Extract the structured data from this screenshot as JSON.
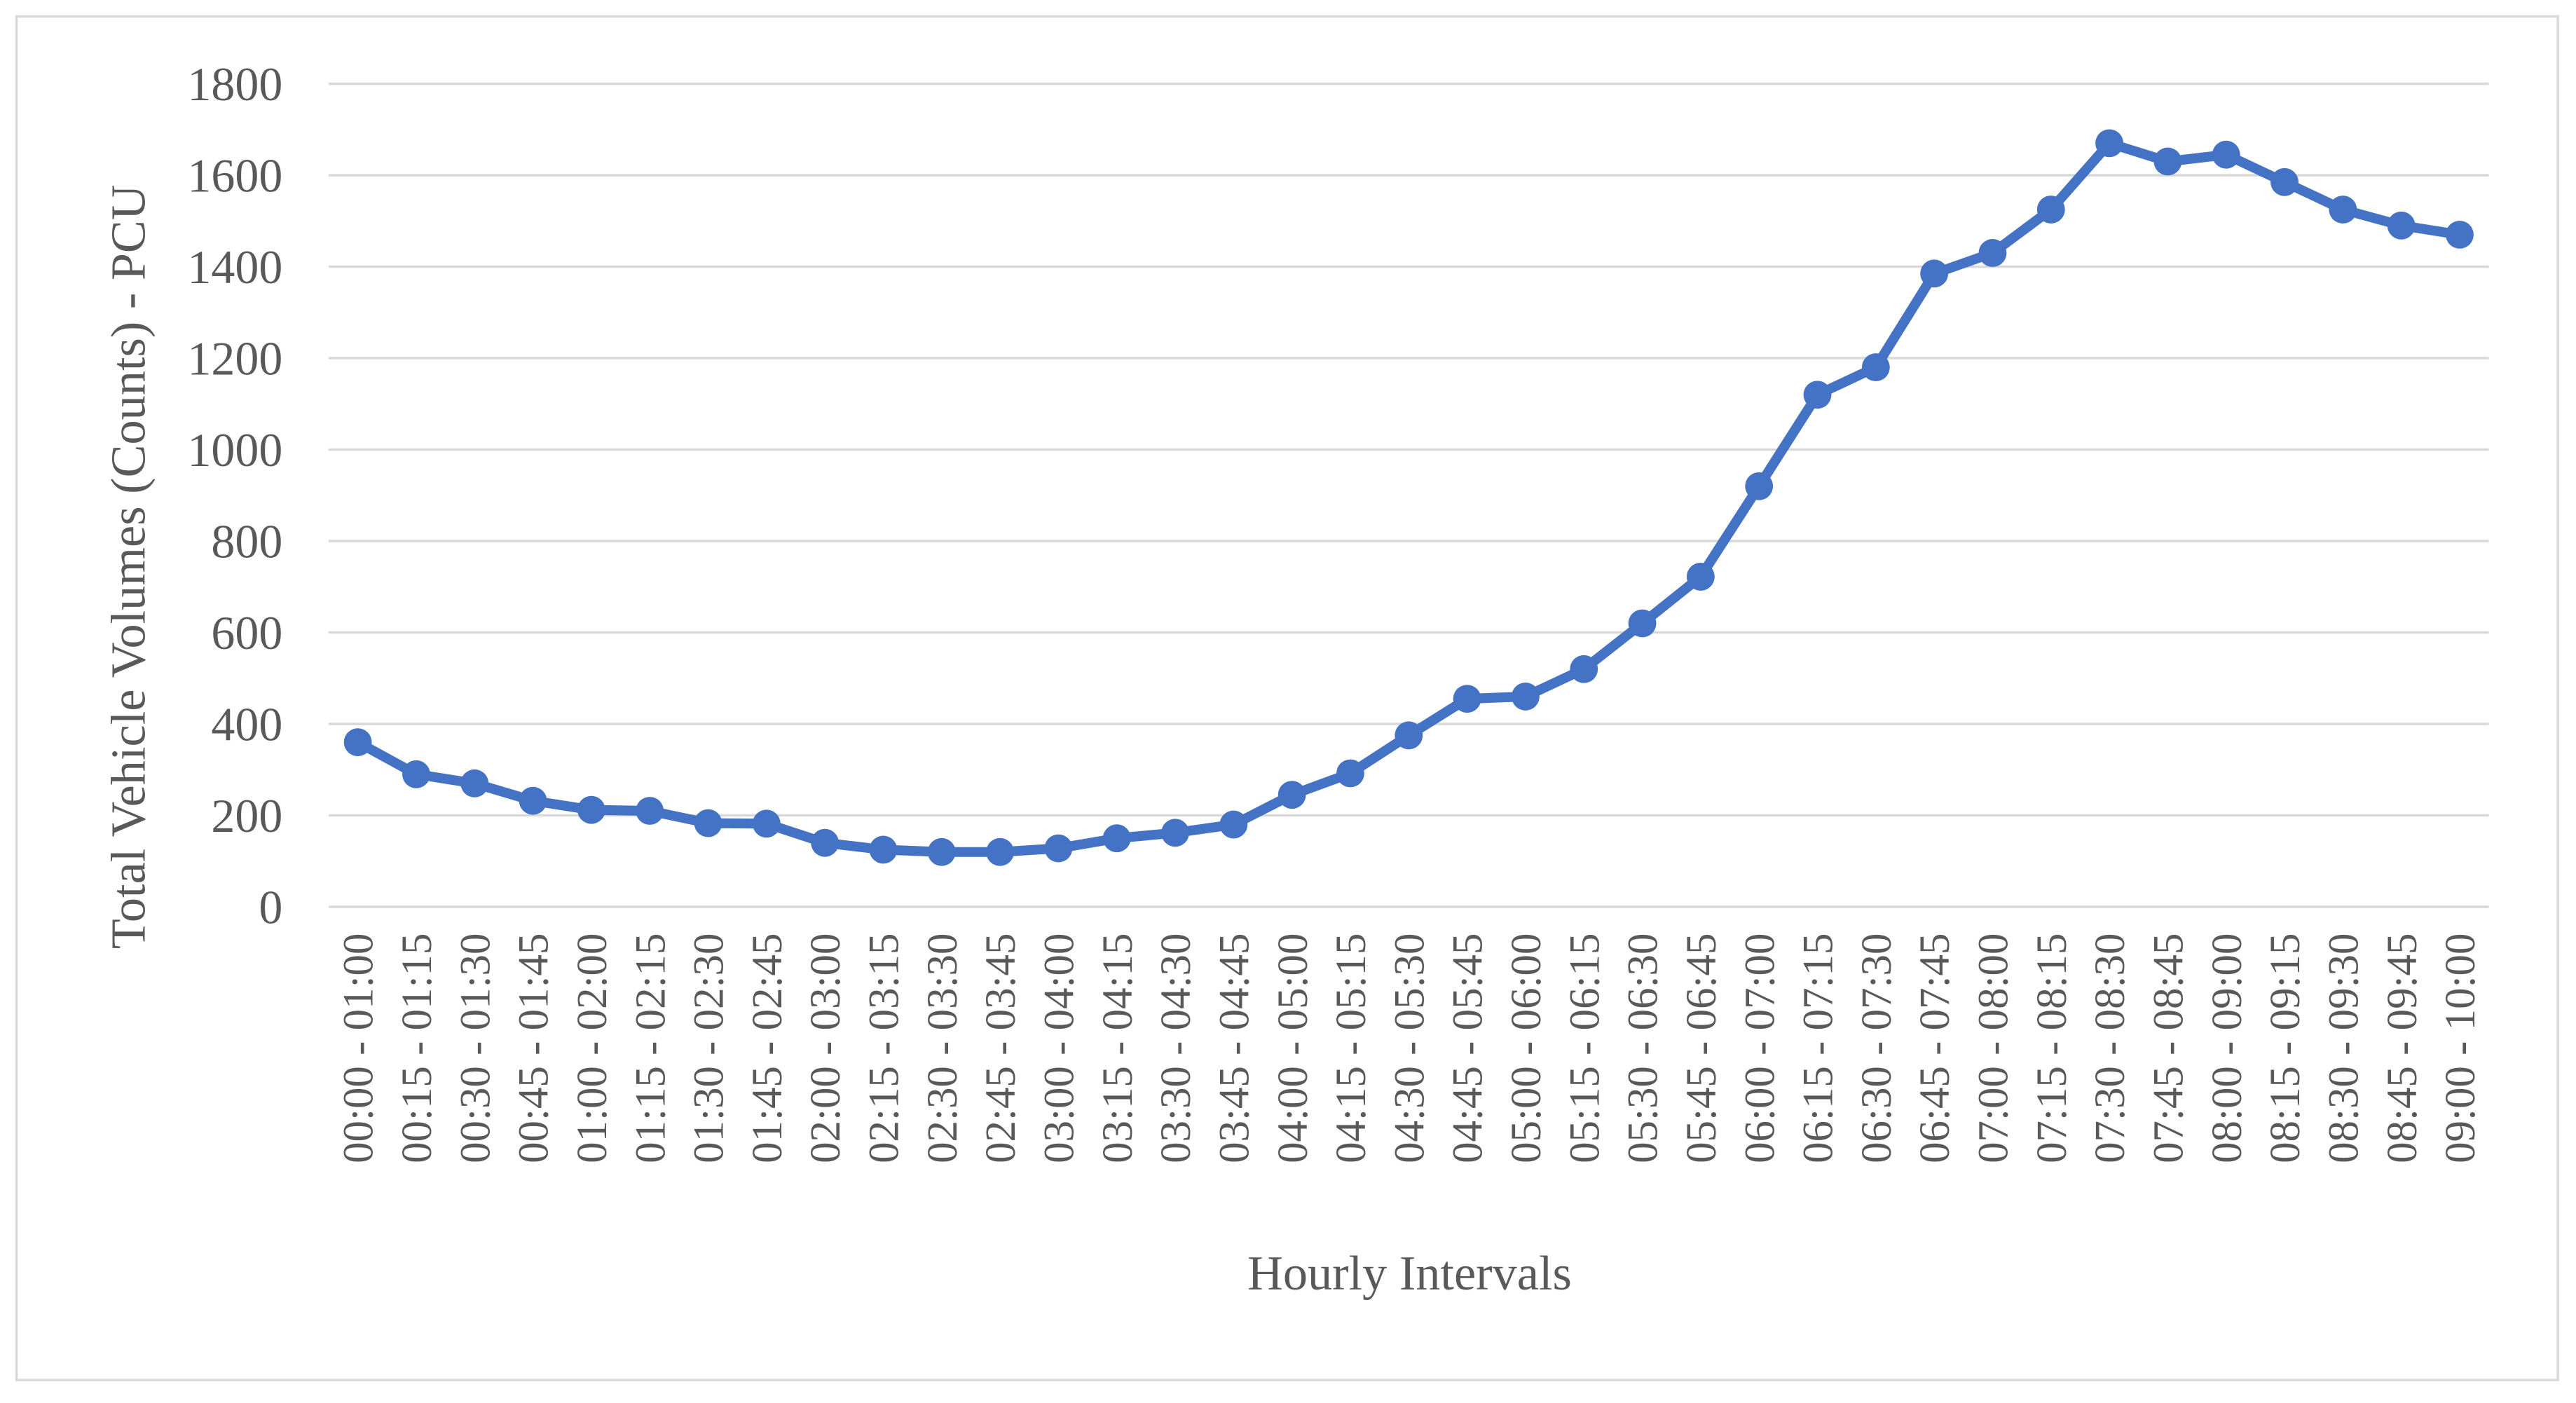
{
  "chart_data": {
    "type": "line",
    "x_label": "Hourly Intervals",
    "y_label": "Total Vehicle Volumes (Counts) - PCU",
    "categories": [
      "00:00 - 01:00",
      "00:15 - 01:15",
      "00:30 - 01:30",
      "00:45 - 01:45",
      "01:00 - 02:00",
      "01:15 - 02:15",
      "01:30 - 02:30",
      "01:45 - 02:45",
      "02:00 - 03:00",
      "02:15 - 03:15",
      "02:30 - 03:30",
      "02:45 - 03:45",
      "03:00 - 04:00",
      "03:15 - 04:15",
      "03:30 - 04:30",
      "03:45 - 04:45",
      "04:00 - 05:00",
      "04:15 - 05:15",
      "04:30 - 05:30",
      "04:45 - 05:45",
      "05:00 - 06:00",
      "05:15 - 06:15",
      "05:30 - 06:30",
      "05:45 - 06:45",
      "06:00 - 07:00",
      "06:15 - 07:15",
      "06:30 - 07:30",
      "06:45 - 07:45",
      "07:00 - 08:00",
      "07:15 - 08:15",
      "07:30 - 08:30",
      "07:45 - 08:45",
      "08:00 - 09:00",
      "08:15 - 09:15",
      "08:30 - 09:30",
      "08:45 - 09:45",
      "09:00 - 10:00"
    ],
    "values": [
      360,
      290,
      270,
      232,
      212,
      210,
      183,
      182,
      140,
      125,
      120,
      120,
      128,
      150,
      162,
      180,
      245,
      292,
      375,
      455,
      460,
      520,
      620,
      722,
      920,
      1120,
      1180,
      1385,
      1430,
      1525,
      1670,
      1630,
      1645,
      1585,
      1525,
      1490,
      1470
    ],
    "color": "#4472c4",
    "ylim": [
      0,
      1800
    ],
    "yticks": [
      0,
      200,
      400,
      600,
      800,
      1000,
      1200,
      1400,
      1600,
      1800
    ],
    "grid": true
  }
}
